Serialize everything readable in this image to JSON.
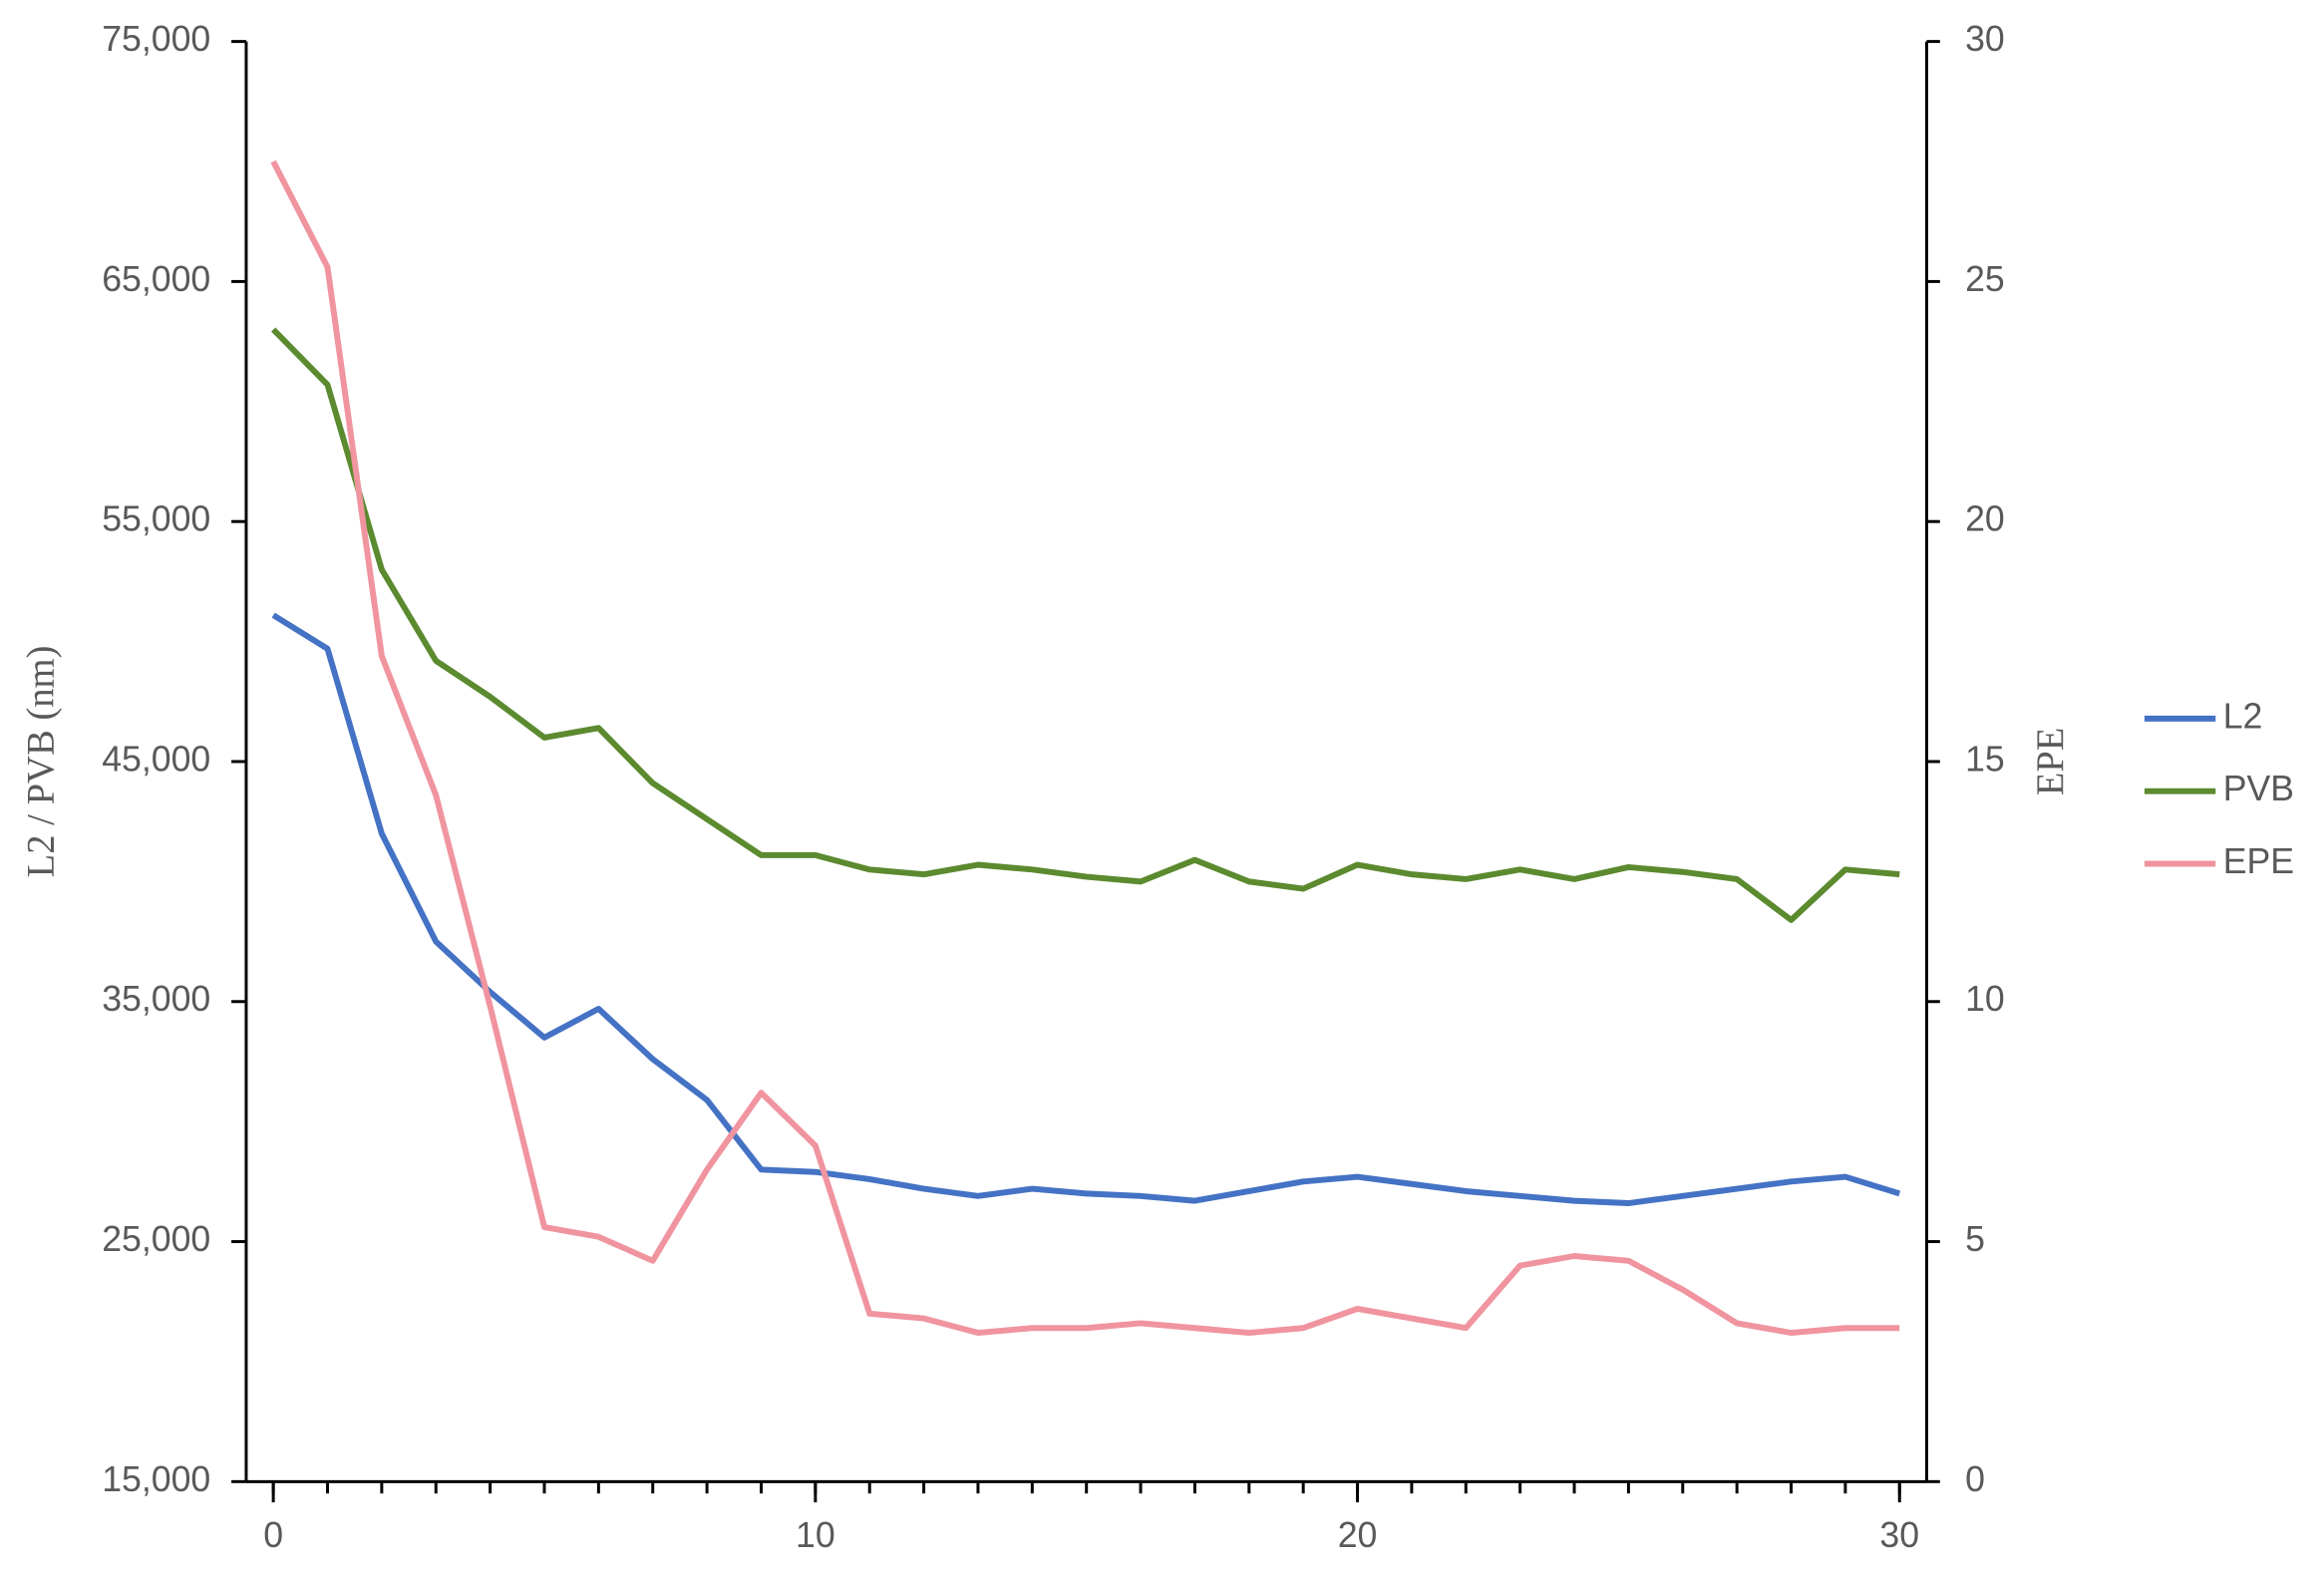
{
  "chart_data": {
    "type": "line",
    "y_label": "L2 / PVB (nm)",
    "y2_label": "EPE",
    "x": [
      0,
      1,
      2,
      3,
      4,
      5,
      6,
      7,
      8,
      9,
      10,
      11,
      12,
      13,
      14,
      15,
      16,
      17,
      18,
      19,
      20,
      21,
      22,
      23,
      24,
      25,
      26,
      27,
      28,
      29,
      30
    ],
    "xlim": [
      -0.5,
      30.5
    ],
    "xticks": [
      0,
      10,
      20,
      30
    ],
    "ylim": [
      15000,
      75000
    ],
    "yticks": [
      {
        "value": 15000,
        "label": "15,000"
      },
      {
        "value": 25000,
        "label": "25,000"
      },
      {
        "value": 35000,
        "label": "35,000"
      },
      {
        "value": 45000,
        "label": "45,000"
      },
      {
        "value": 55000,
        "label": "55,000"
      },
      {
        "value": 65000,
        "label": "65,000"
      },
      {
        "value": 75000,
        "label": "75,000"
      }
    ],
    "y2lim": [
      0,
      30
    ],
    "y2ticks": [
      0,
      5,
      10,
      15,
      20,
      25,
      30
    ],
    "legend": "right",
    "series": [
      {
        "name": "L2",
        "color": "#4472c4",
        "values": [
          51100,
          49700,
          42000,
          37500,
          35400,
          33500,
          34700,
          32600,
          30900,
          28000,
          27900,
          27600,
          27200,
          26900,
          27200,
          27000,
          26900,
          26700,
          27100,
          27500,
          27700,
          27400,
          27100,
          26900,
          26700,
          26600,
          26900,
          27200,
          27500,
          27700,
          27000
        ]
      },
      {
        "name": "PVB",
        "color": "#5b8a2f",
        "values": [
          63000,
          60700,
          53000,
          49200,
          47700,
          46000,
          46400,
          44100,
          42600,
          41100,
          41100,
          40500,
          40300,
          40700,
          40500,
          40200,
          40000,
          40900,
          40000,
          39700,
          40700,
          40300,
          40100,
          40500,
          40100,
          40600,
          40400,
          40100,
          38400,
          40500,
          40300
        ]
      },
      {
        "name": "EPE",
        "color": "#f0949f",
        "axis": "y2",
        "values": [
          27.5,
          25.3,
          17.2,
          14.3,
          9.9,
          5.3,
          5.1,
          4.6,
          6.5,
          8.1,
          7.0,
          3.5,
          3.4,
          3.1,
          3.2,
          3.2,
          3.3,
          3.2,
          3.1,
          3.2,
          3.6,
          3.4,
          3.2,
          4.5,
          4.7,
          4.6,
          4.0,
          3.3,
          3.1,
          3.2,
          3.2
        ]
      }
    ]
  }
}
